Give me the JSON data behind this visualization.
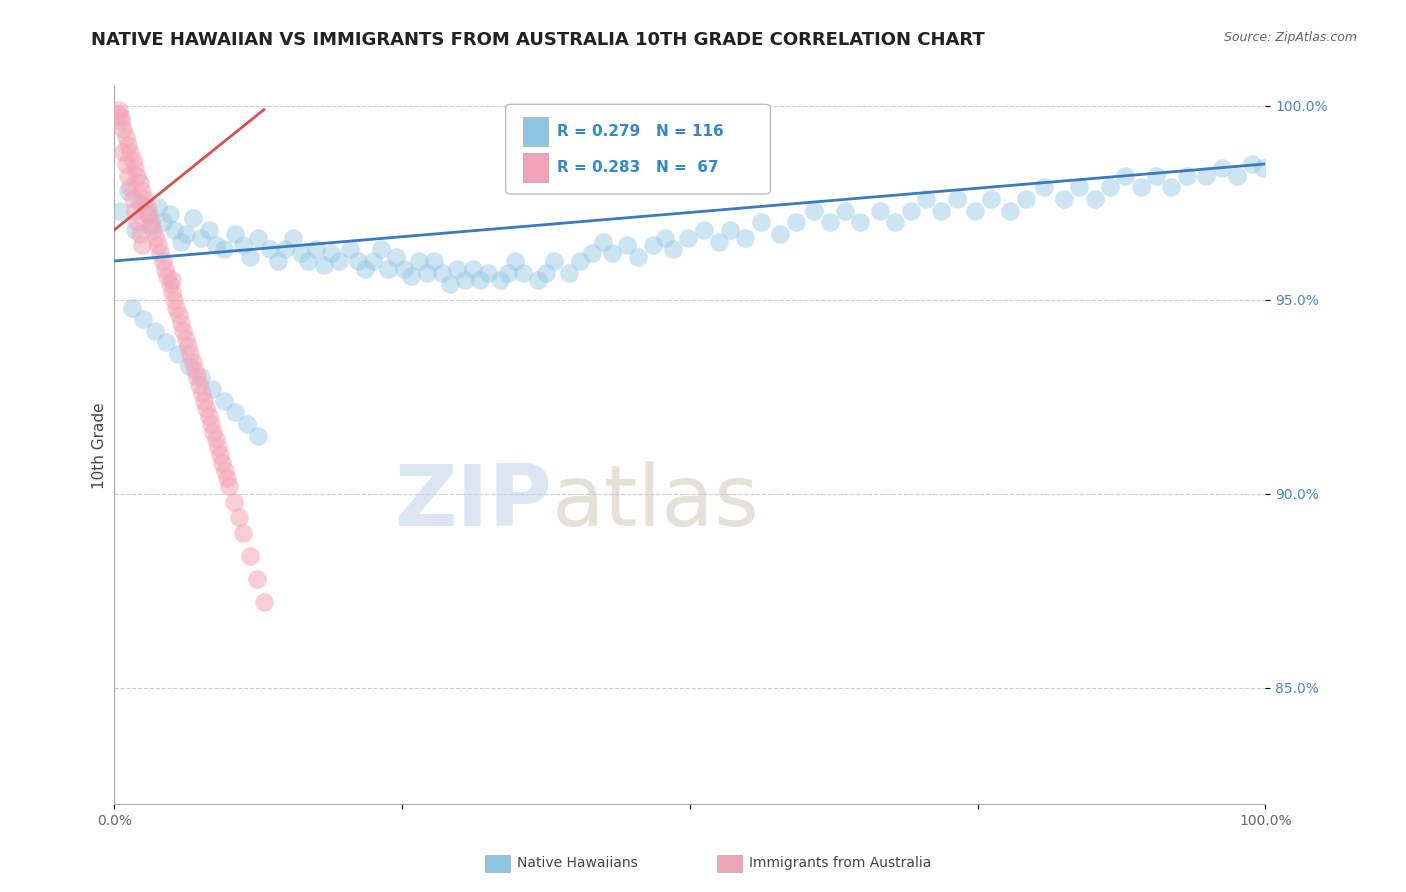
{
  "title": "NATIVE HAWAIIAN VS IMMIGRANTS FROM AUSTRALIA 10TH GRADE CORRELATION CHART",
  "source_text": "Source: ZipAtlas.com",
  "ylabel": "10th Grade",
  "xlabel": "",
  "xlim": [
    0.0,
    1.0
  ],
  "ylim": [
    0.82,
    1.005
  ],
  "yticks": [
    0.85,
    0.9,
    0.95,
    1.0
  ],
  "ytick_labels": [
    "85.0%",
    "90.0%",
    "95.0%",
    "100.0%"
  ],
  "xticks": [
    0.0,
    0.25,
    0.5,
    0.75,
    1.0
  ],
  "xtick_labels": [
    "0.0%",
    "",
    "",
    "",
    "100.0%"
  ],
  "legend_r1": "R = 0.279",
  "legend_n1": "N = 116",
  "legend_r2": "R = 0.283",
  "legend_n2": "N =  67",
  "blue_color": "#90c4e4",
  "pink_color": "#f4a4b8",
  "blue_line_color": "#3a7abf",
  "pink_line_color": "#d94f4f",
  "watermark_zip": "ZIP",
  "watermark_atlas": "atlas",
  "title_fontsize": 13,
  "axis_label_fontsize": 11,
  "tick_fontsize": 10,
  "blue_trend_x": [
    0.0,
    1.0
  ],
  "blue_trend_y": [
    0.96,
    0.985
  ],
  "pink_trend_x": [
    0.0,
    0.13
  ],
  "pink_trend_y": [
    0.968,
    0.999
  ],
  "blue_scatter_x": [
    0.005,
    0.012,
    0.018,
    0.022,
    0.028,
    0.032,
    0.038,
    0.042,
    0.048,
    0.052,
    0.058,
    0.062,
    0.068,
    0.075,
    0.082,
    0.088,
    0.095,
    0.105,
    0.112,
    0.118,
    0.125,
    0.135,
    0.142,
    0.148,
    0.155,
    0.162,
    0.168,
    0.175,
    0.182,
    0.188,
    0.195,
    0.205,
    0.212,
    0.218,
    0.225,
    0.232,
    0.238,
    0.245,
    0.252,
    0.258,
    0.265,
    0.272,
    0.278,
    0.285,
    0.292,
    0.298,
    0.305,
    0.312,
    0.318,
    0.325,
    0.335,
    0.342,
    0.348,
    0.355,
    0.368,
    0.375,
    0.382,
    0.395,
    0.405,
    0.415,
    0.425,
    0.432,
    0.445,
    0.455,
    0.468,
    0.478,
    0.485,
    0.498,
    0.512,
    0.525,
    0.535,
    0.548,
    0.562,
    0.578,
    0.592,
    0.608,
    0.622,
    0.635,
    0.648,
    0.665,
    0.678,
    0.692,
    0.705,
    0.718,
    0.732,
    0.748,
    0.762,
    0.778,
    0.792,
    0.808,
    0.825,
    0.838,
    0.852,
    0.865,
    0.878,
    0.892,
    0.905,
    0.918,
    0.932,
    0.948,
    0.962,
    0.975,
    0.988,
    0.998,
    0.015,
    0.025,
    0.035,
    0.045,
    0.055,
    0.065,
    0.075,
    0.085,
    0.095,
    0.105,
    0.115,
    0.125
  ],
  "blue_scatter_y": [
    0.973,
    0.978,
    0.968,
    0.975,
    0.972,
    0.969,
    0.974,
    0.97,
    0.972,
    0.968,
    0.965,
    0.967,
    0.971,
    0.966,
    0.968,
    0.964,
    0.963,
    0.967,
    0.964,
    0.961,
    0.966,
    0.963,
    0.96,
    0.963,
    0.966,
    0.962,
    0.96,
    0.963,
    0.959,
    0.962,
    0.96,
    0.963,
    0.96,
    0.958,
    0.96,
    0.963,
    0.958,
    0.961,
    0.958,
    0.956,
    0.96,
    0.957,
    0.96,
    0.957,
    0.954,
    0.958,
    0.955,
    0.958,
    0.955,
    0.957,
    0.955,
    0.957,
    0.96,
    0.957,
    0.955,
    0.957,
    0.96,
    0.957,
    0.96,
    0.962,
    0.965,
    0.962,
    0.964,
    0.961,
    0.964,
    0.966,
    0.963,
    0.966,
    0.968,
    0.965,
    0.968,
    0.966,
    0.97,
    0.967,
    0.97,
    0.973,
    0.97,
    0.973,
    0.97,
    0.973,
    0.97,
    0.973,
    0.976,
    0.973,
    0.976,
    0.973,
    0.976,
    0.973,
    0.976,
    0.979,
    0.976,
    0.979,
    0.976,
    0.979,
    0.982,
    0.979,
    0.982,
    0.979,
    0.982,
    0.982,
    0.984,
    0.982,
    0.985,
    0.984,
    0.948,
    0.945,
    0.942,
    0.939,
    0.936,
    0.933,
    0.93,
    0.927,
    0.924,
    0.921,
    0.918,
    0.915
  ],
  "pink_scatter_x": [
    0.003,
    0.006,
    0.008,
    0.01,
    0.012,
    0.014,
    0.016,
    0.018,
    0.02,
    0.022,
    0.024,
    0.026,
    0.028,
    0.03,
    0.032,
    0.034,
    0.036,
    0.038,
    0.04,
    0.042,
    0.044,
    0.046,
    0.048,
    0.05,
    0.052,
    0.054,
    0.056,
    0.058,
    0.06,
    0.062,
    0.064,
    0.066,
    0.068,
    0.07,
    0.072,
    0.074,
    0.076,
    0.078,
    0.08,
    0.082,
    0.084,
    0.086,
    0.088,
    0.09,
    0.092,
    0.094,
    0.096,
    0.098,
    0.1,
    0.104,
    0.108,
    0.112,
    0.118,
    0.124,
    0.13,
    0.008,
    0.01,
    0.012,
    0.014,
    0.016,
    0.018,
    0.02,
    0.022,
    0.024,
    0.004,
    0.006,
    0.05
  ],
  "pink_scatter_y": [
    0.998,
    0.996,
    0.994,
    0.992,
    0.99,
    0.988,
    0.986,
    0.984,
    0.982,
    0.98,
    0.978,
    0.976,
    0.974,
    0.972,
    0.97,
    0.968,
    0.966,
    0.964,
    0.962,
    0.96,
    0.958,
    0.956,
    0.954,
    0.952,
    0.95,
    0.948,
    0.946,
    0.944,
    0.942,
    0.94,
    0.938,
    0.936,
    0.934,
    0.932,
    0.93,
    0.928,
    0.926,
    0.924,
    0.922,
    0.92,
    0.918,
    0.916,
    0.914,
    0.912,
    0.91,
    0.908,
    0.906,
    0.904,
    0.902,
    0.898,
    0.894,
    0.89,
    0.884,
    0.878,
    0.872,
    0.988,
    0.985,
    0.982,
    0.979,
    0.976,
    0.973,
    0.97,
    0.967,
    0.964,
    0.999,
    0.997,
    0.955
  ]
}
